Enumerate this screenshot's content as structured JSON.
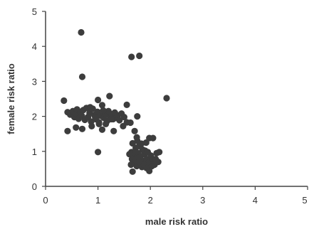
{
  "chart_data": {
    "type": "scatter",
    "title": "",
    "xlabel": "male risk ratio",
    "ylabel": "female risk ratio",
    "xlim": [
      0,
      5
    ],
    "ylim": [
      0,
      5
    ],
    "xticks": [
      "0",
      "1",
      "2",
      "3",
      "4",
      "5"
    ],
    "yticks": [
      "0",
      "1",
      "2",
      "3",
      "4",
      "5"
    ],
    "grid": false,
    "legend": "none",
    "colors": {
      "marker": "#3d3d3d",
      "axis": "#444444",
      "text": "#333333"
    },
    "points": [
      [
        0.68,
        4.4
      ],
      [
        1.64,
        3.7
      ],
      [
        1.79,
        3.73
      ],
      [
        0.7,
        3.13
      ],
      [
        2.31,
        2.52
      ],
      [
        0.35,
        2.45
      ],
      [
        0.42,
        2.12
      ],
      [
        0.47,
        2.05
      ],
      [
        0.52,
        2.15
      ],
      [
        0.55,
        1.98
      ],
      [
        0.58,
        2.08
      ],
      [
        0.6,
        2.2
      ],
      [
        0.63,
        1.93
      ],
      [
        0.66,
        2.12
      ],
      [
        0.69,
        2.02
      ],
      [
        0.72,
        2.18
      ],
      [
        0.75,
        1.9
      ],
      [
        0.78,
        2.24
      ],
      [
        0.81,
        1.98
      ],
      [
        0.84,
        2.1
      ],
      [
        0.87,
        1.85
      ],
      [
        0.9,
        2.22
      ],
      [
        0.93,
        2.04
      ],
      [
        0.96,
        1.92
      ],
      [
        0.99,
        2.13
      ],
      [
        1.02,
        1.83
      ],
      [
        1.05,
        2.02
      ],
      [
        1.08,
        2.32
      ],
      [
        1.11,
        1.96
      ],
      [
        1.14,
        2.08
      ],
      [
        1.17,
        1.86
      ],
      [
        1.2,
        2.15
      ],
      [
        1.23,
        1.99
      ],
      [
        1.26,
        2.06
      ],
      [
        1.29,
        1.92
      ],
      [
        1.32,
        2.11
      ],
      [
        1.35,
        1.96
      ],
      [
        1.38,
        2.03
      ],
      [
        1.41,
        1.89
      ],
      [
        1.45,
        2.08
      ],
      [
        1.5,
        1.98
      ],
      [
        1.55,
        1.83
      ],
      [
        0.85,
        2.26
      ],
      [
        0.95,
        1.96
      ],
      [
        1.1,
        2.17
      ],
      [
        1.25,
        1.92
      ],
      [
        1.15,
        1.78
      ],
      [
        1.0,
        2.47
      ],
      [
        1.22,
        2.58
      ],
      [
        1.55,
        2.33
      ],
      [
        1.75,
        2.0
      ],
      [
        0.42,
        1.58
      ],
      [
        0.58,
        1.68
      ],
      [
        0.7,
        1.64
      ],
      [
        0.88,
        1.72
      ],
      [
        1.08,
        1.62
      ],
      [
        1.3,
        1.58
      ],
      [
        1.48,
        1.72
      ],
      [
        1.02,
        1.78
      ],
      [
        1.62,
        1.82
      ],
      [
        1.0,
        0.98
      ],
      [
        1.7,
        1.58
      ],
      [
        1.74,
        1.4
      ],
      [
        1.66,
        1.23
      ],
      [
        1.72,
        1.1
      ],
      [
        1.79,
        1.15
      ],
      [
        1.85,
        1.05
      ],
      [
        1.92,
        1.25
      ],
      [
        1.98,
        1.38
      ],
      [
        2.05,
        1.38
      ],
      [
        1.64,
        0.98
      ],
      [
        1.68,
        0.9
      ],
      [
        1.73,
        0.82
      ],
      [
        1.77,
        0.95
      ],
      [
        1.81,
        0.84
      ],
      [
        1.85,
        0.73
      ],
      [
        1.89,
        0.92
      ],
      [
        1.93,
        0.78
      ],
      [
        1.97,
        0.68
      ],
      [
        2.01,
        0.88
      ],
      [
        2.05,
        0.77
      ],
      [
        2.08,
        0.62
      ],
      [
        2.12,
        0.95
      ],
      [
        2.17,
        0.98
      ],
      [
        1.6,
        0.92
      ],
      [
        1.65,
        0.78
      ],
      [
        1.7,
        0.68
      ],
      [
        1.74,
        0.58
      ],
      [
        1.79,
        0.7
      ],
      [
        1.84,
        0.55
      ],
      [
        1.88,
        0.62
      ],
      [
        1.93,
        0.52
      ],
      [
        1.98,
        0.44
      ],
      [
        2.03,
        0.58
      ],
      [
        1.66,
        0.42
      ],
      [
        2.1,
        0.78
      ],
      [
        1.72,
        1.0
      ],
      [
        1.83,
        1.22
      ],
      [
        1.63,
        0.62
      ],
      [
        1.75,
        1.3
      ],
      [
        1.9,
        1.02
      ],
      [
        2.15,
        0.7
      ],
      [
        1.95,
        0.98
      ]
    ]
  }
}
